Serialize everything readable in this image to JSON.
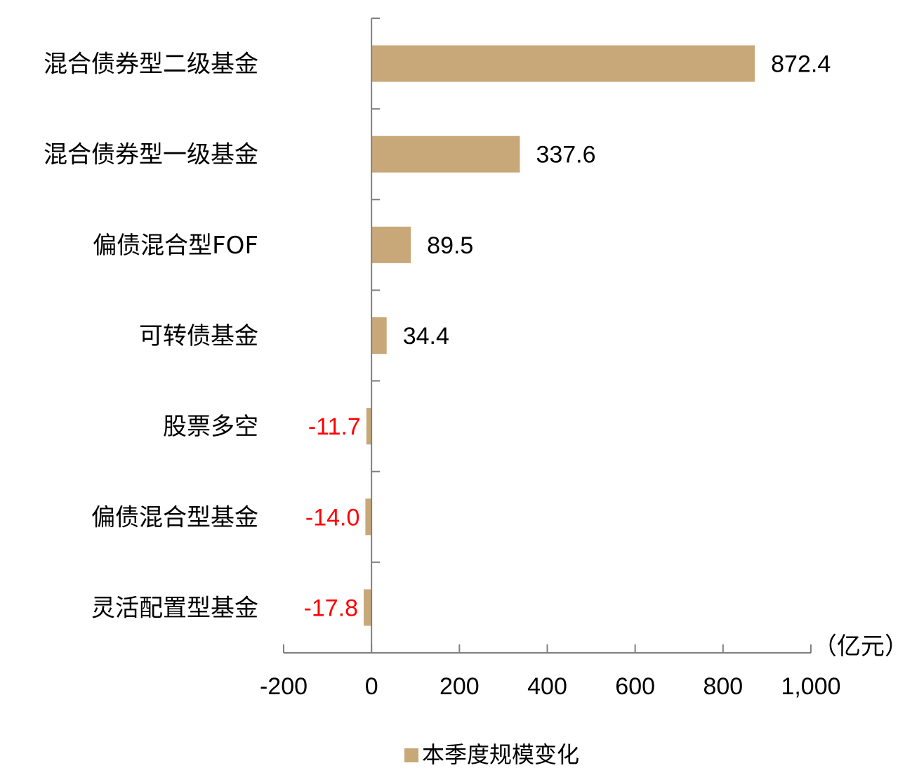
{
  "chart_data": {
    "type": "bar",
    "orientation": "horizontal",
    "categories": [
      "混合债券型二级基金",
      "混合债券型一级基金",
      "偏债混合型FOF",
      "可转债基金",
      "股票多空",
      "偏债混合型基金",
      "灵活配置型基金"
    ],
    "series": [
      {
        "name": "本季度规模变化",
        "values": [
          872.4,
          337.6,
          89.5,
          34.4,
          -11.7,
          -14.0,
          -17.8
        ],
        "labels": [
          "872.4",
          "337.6",
          "89.5",
          "34.4",
          "-11.7",
          "-14.0",
          "-17.8"
        ]
      }
    ],
    "xlim": [
      -200,
      1000
    ],
    "xticks": [
      -200,
      0,
      200,
      400,
      600,
      800,
      1000
    ],
    "xtick_labels": [
      "-200",
      "0",
      "200",
      "400",
      "600",
      "800",
      "1,000"
    ],
    "unit_label": "（亿元）",
    "legend": {
      "entries": [
        "本季度规模变化"
      ],
      "position": "bottom-center"
    },
    "grid": false,
    "colors": {
      "bar": "#C8A878",
      "positive_label": "#000000",
      "negative_label": "#FF0000",
      "axis": "#7F7F7F"
    }
  }
}
